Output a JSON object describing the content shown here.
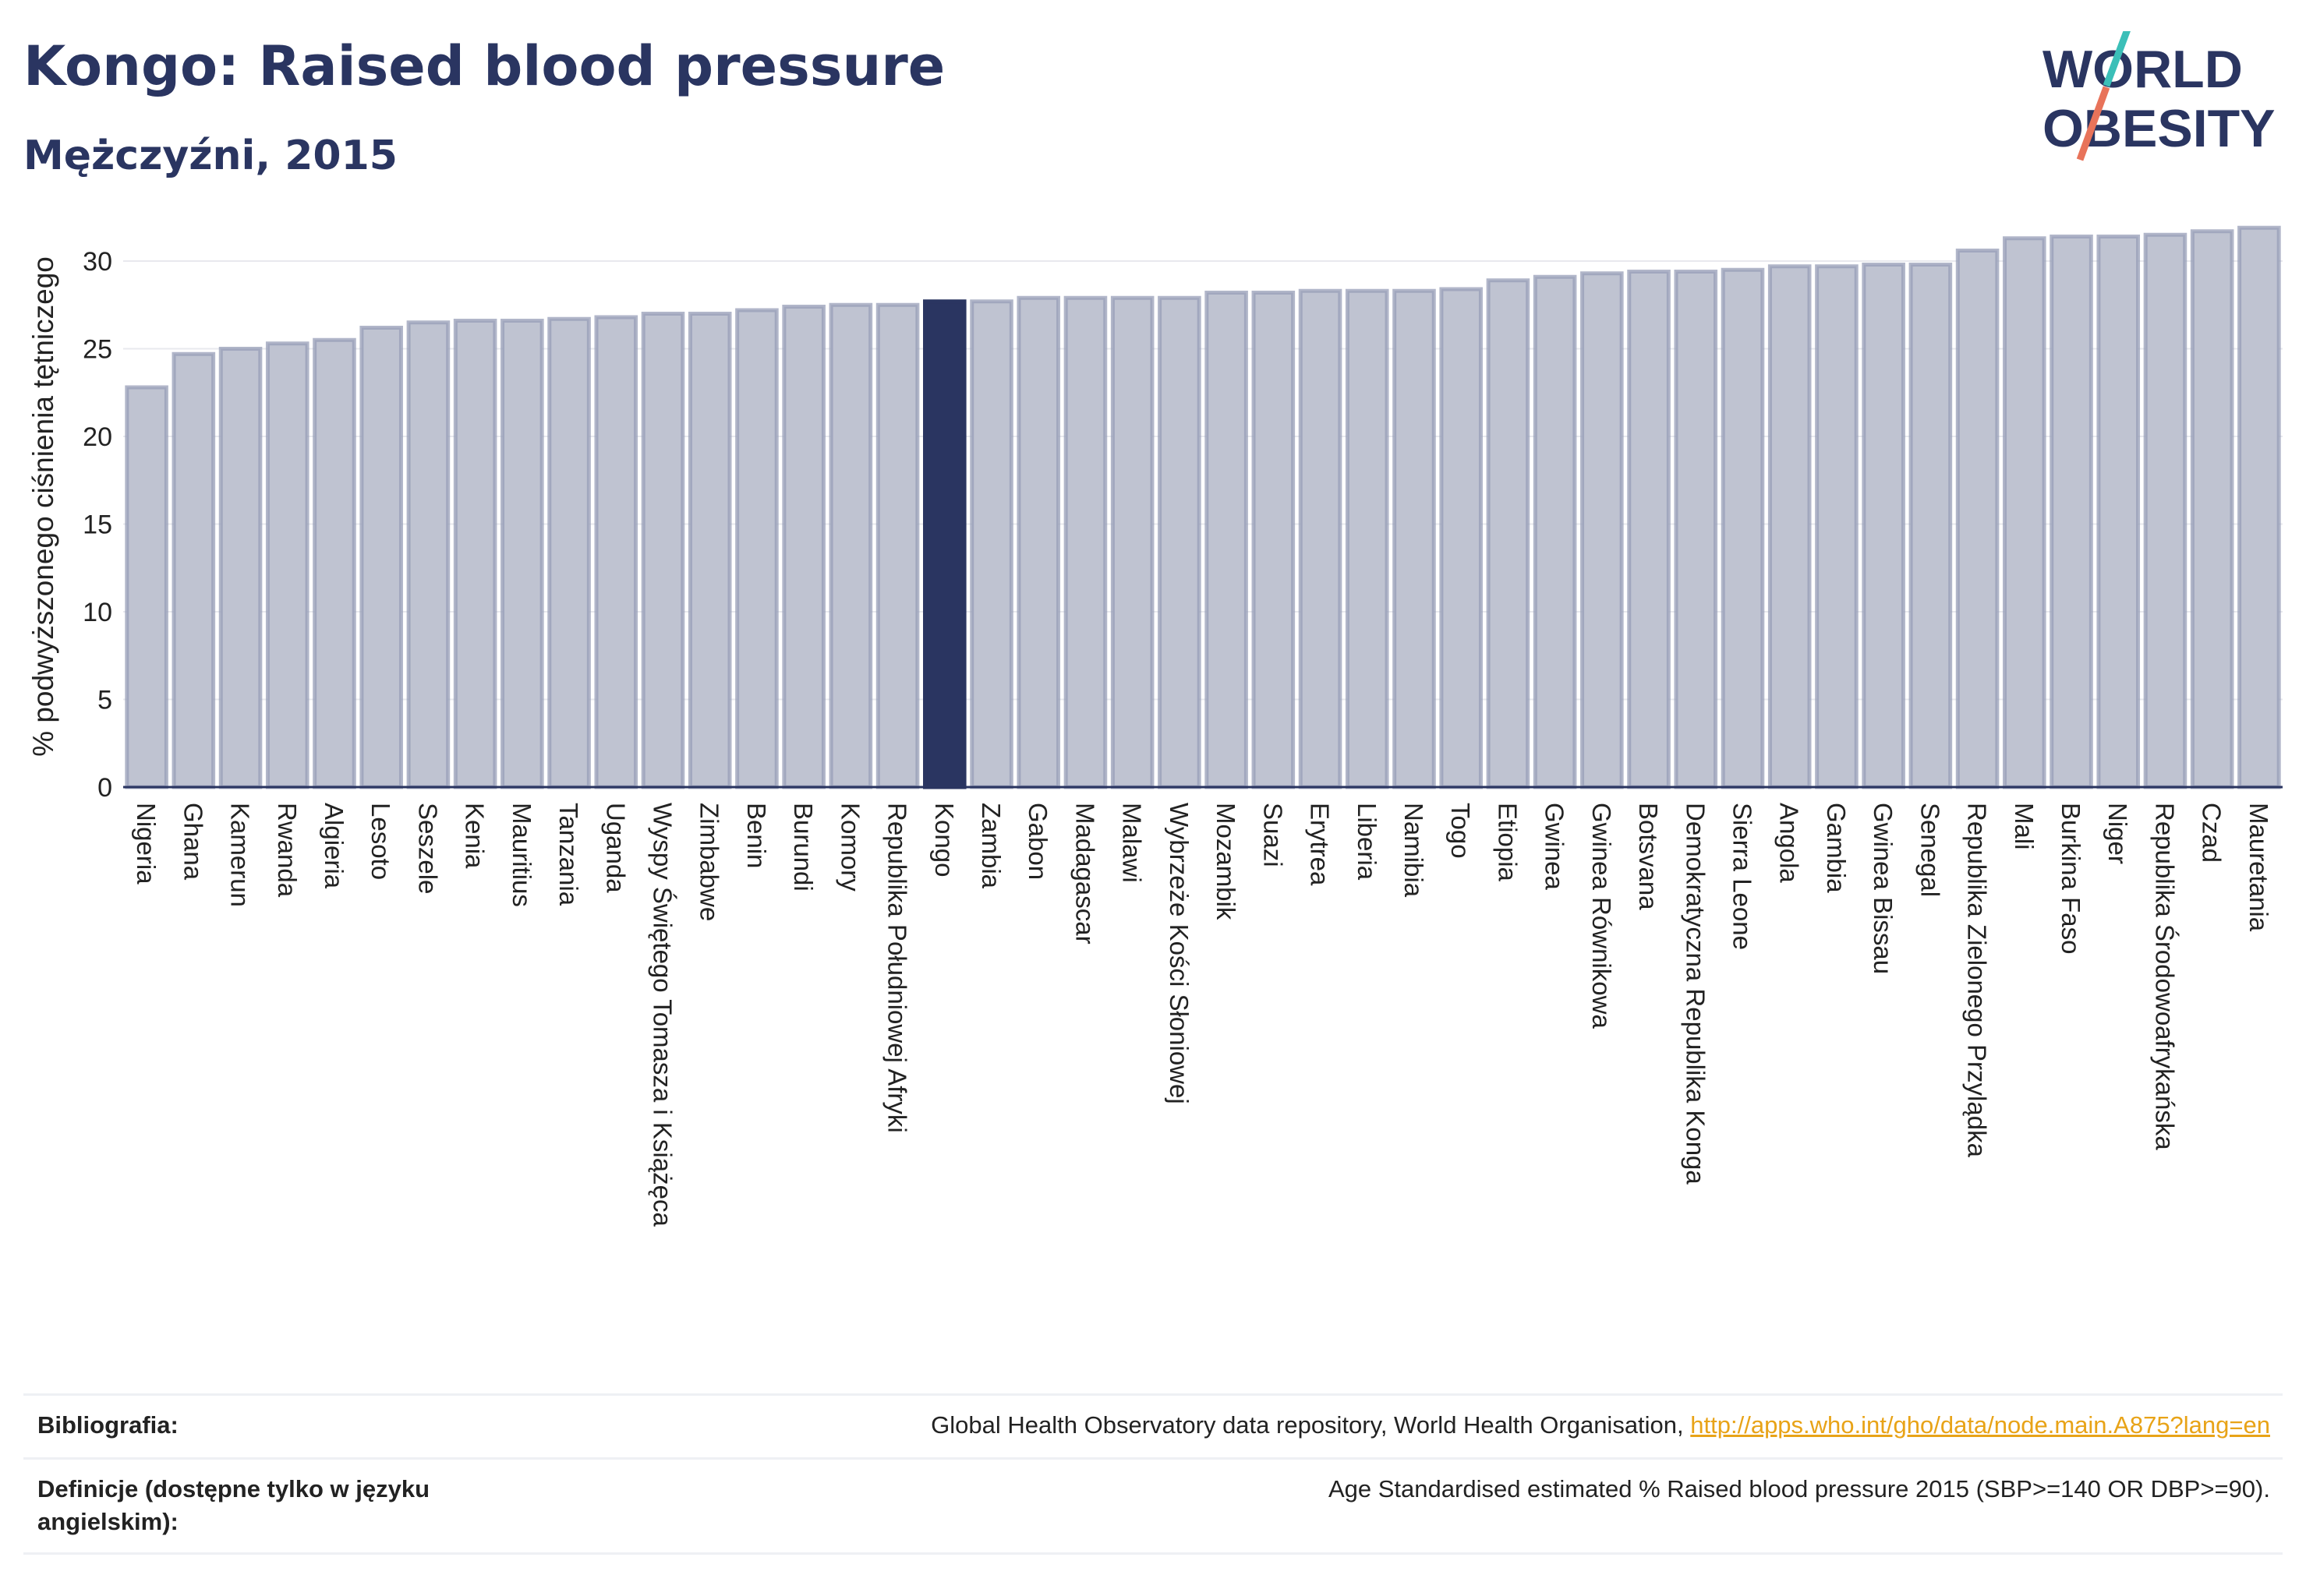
{
  "header": {
    "title": "Kongo: Raised blood pressure",
    "subtitle": "Mężczyźni, 2015"
  },
  "logo": {
    "line1": "WORLD",
    "line2": "OBESITY",
    "slash_colors": [
      "#3bbfb8",
      "#e8735a"
    ]
  },
  "colors": {
    "bar": "#bfc3d1",
    "bar_border": "#979db7",
    "highlight": "#2a3561",
    "grid": "#e8e9ee",
    "axis_text": "#222222"
  },
  "chart_data": {
    "type": "bar",
    "ylabel": "% podwyższonego ciśnienia tętniczego",
    "ylim": [
      0,
      32
    ],
    "yticks": [
      0,
      5,
      10,
      15,
      20,
      25,
      30
    ],
    "grid": true,
    "highlight": "Kongo",
    "categories": [
      "Nigeria",
      "Ghana",
      "Kamerun",
      "Rwanda",
      "Algieria",
      "Lesoto",
      "Seszele",
      "Kenia",
      "Mauritius",
      "Tanzania",
      "Uganda",
      "Wyspy Świętego Tomasza i Książęca",
      "Zimbabwe",
      "Benin",
      "Burundi",
      "Komory",
      "Republika Południowej Afryki",
      "Kongo",
      "Zambia",
      "Gabon",
      "Madagascar",
      "Malawi",
      "Wybrzeże Kości Słoniowej",
      "Mozambik",
      "Suazi",
      "Erytrea",
      "Liberia",
      "Namibia",
      "Togo",
      "Etiopia",
      "Gwinea",
      "Gwinea Równikowa",
      "Botsvana",
      "Demokratyczna Republika Konga",
      "Sierra Leone",
      "Angola",
      "Gambia",
      "Gwinea Bissau",
      "Senegal",
      "Republika Zielonego Przylądka",
      "Mali",
      "Burkina Faso",
      "Niger",
      "Republika Środowoafrykańska",
      "Czad",
      "Mauretania"
    ],
    "values": [
      22.8,
      24.7,
      25.0,
      25.3,
      25.5,
      26.2,
      26.5,
      26.6,
      26.6,
      26.7,
      26.8,
      27.0,
      27.0,
      27.2,
      27.4,
      27.5,
      27.5,
      27.7,
      27.7,
      27.9,
      27.9,
      27.9,
      27.9,
      28.2,
      28.2,
      28.3,
      28.3,
      28.3,
      28.4,
      28.9,
      29.1,
      29.3,
      29.4,
      29.4,
      29.5,
      29.7,
      29.7,
      29.8,
      29.8,
      30.6,
      31.3,
      31.4,
      31.4,
      31.5,
      31.7,
      31.9
    ]
  },
  "footer": {
    "bibliography_label": "Bibliografia:",
    "bibliography_text": "Global Health Observatory data repository, World Health Organisation,",
    "bibliography_link": "http://apps.who.int/gho/data/node.main.A875?lang=en",
    "definitions_label": "Definicje (dostępne tylko w języku angielskim):",
    "definitions_text": "Age Standardised estimated % Raised blood pressure 2015 (SBP>=140 OR DBP>=90)."
  }
}
